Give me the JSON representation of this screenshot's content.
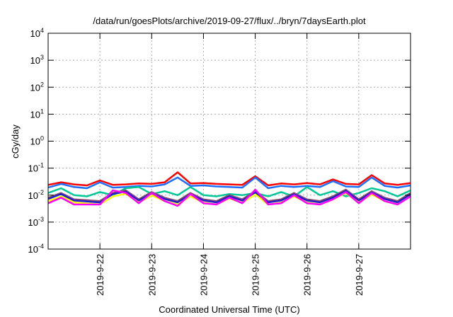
{
  "chart_data": {
    "type": "line",
    "title": "/data/run/goesPlots/archive/2019-09-27/flux/../bryn/7daysEarth.plot",
    "xlabel": "Coordinated Universal Time (UTC)",
    "ylabel": "cGy/day",
    "yscale": "log",
    "ylim": [
      0.0001,
      10000
    ],
    "xlim_hours": [
      0,
      168
    ],
    "x_start": "2019-09-21 00:00",
    "grid": true,
    "legend": "none",
    "yticks": [
      {
        "value": 0.0001,
        "base": "10",
        "exp": "-4"
      },
      {
        "value": 0.001,
        "base": "10",
        "exp": "-3"
      },
      {
        "value": 0.01,
        "base": "10",
        "exp": "-2"
      },
      {
        "value": 0.1,
        "base": "10",
        "exp": "-1"
      },
      {
        "value": 1,
        "base": "10",
        "exp": "0"
      },
      {
        "value": 10,
        "base": "10",
        "exp": "1"
      },
      {
        "value": 100,
        "base": "10",
        "exp": "2"
      },
      {
        "value": 1000,
        "base": "10",
        "exp": "3"
      },
      {
        "value": 10000,
        "base": "10",
        "exp": "4"
      }
    ],
    "xticks": [
      {
        "hour": 24,
        "label": "2019-9-22"
      },
      {
        "hour": 48,
        "label": "2019-9-23"
      },
      {
        "hour": 72,
        "label": "2019-9-24"
      },
      {
        "hour": 96,
        "label": "2019-9-25"
      },
      {
        "hour": 120,
        "label": "2019-9-26"
      },
      {
        "hour": 144,
        "label": "2019-9-27"
      }
    ],
    "x_hours": [
      0,
      6,
      12,
      18,
      24,
      30,
      36,
      42,
      48,
      54,
      60,
      66,
      72,
      78,
      84,
      90,
      96,
      102,
      108,
      114,
      120,
      126,
      132,
      138,
      144,
      150,
      156,
      162,
      168
    ],
    "series": [
      {
        "color": "#ff0000",
        "values": [
          0.024,
          0.03,
          0.025,
          0.023,
          0.035,
          0.024,
          0.025,
          0.027,
          0.026,
          0.03,
          0.07,
          0.027,
          0.028,
          0.026,
          0.025,
          0.024,
          0.05,
          0.023,
          0.027,
          0.025,
          0.028,
          0.025,
          0.038,
          0.026,
          0.025,
          0.055,
          0.027,
          0.024,
          0.028
        ]
      },
      {
        "color": "#1e6fff",
        "values": [
          0.019,
          0.026,
          0.02,
          0.018,
          0.03,
          0.019,
          0.02,
          0.022,
          0.021,
          0.025,
          0.045,
          0.022,
          0.023,
          0.021,
          0.02,
          0.019,
          0.045,
          0.018,
          0.022,
          0.02,
          0.022,
          0.02,
          0.033,
          0.021,
          0.02,
          0.045,
          0.022,
          0.019,
          0.023
        ]
      },
      {
        "color": "#00c896",
        "values": [
          0.012,
          0.018,
          0.01,
          0.009,
          0.013,
          0.01,
          0.018,
          0.02,
          0.011,
          0.014,
          0.01,
          0.02,
          0.01,
          0.009,
          0.011,
          0.01,
          0.012,
          0.009,
          0.013,
          0.009,
          0.02,
          0.01,
          0.014,
          0.009,
          0.012,
          0.018,
          0.014,
          0.009,
          0.015
        ]
      },
      {
        "color": "#8b4f6e",
        "values": [
          0.008,
          0.012,
          0.007,
          0.0065,
          0.006,
          0.012,
          0.015,
          0.007,
          0.013,
          0.008,
          0.006,
          0.012,
          0.007,
          0.006,
          0.01,
          0.007,
          0.014,
          0.006,
          0.007,
          0.012,
          0.007,
          0.006,
          0.009,
          0.016,
          0.007,
          0.014,
          0.008,
          0.006,
          0.012
        ]
      },
      {
        "color": "#2020c8",
        "values": [
          0.0072,
          0.011,
          0.0063,
          0.0058,
          0.0054,
          0.011,
          0.0135,
          0.0063,
          0.0117,
          0.0072,
          0.0054,
          0.0108,
          0.0063,
          0.0054,
          0.009,
          0.0063,
          0.0126,
          0.0054,
          0.0063,
          0.0108,
          0.0063,
          0.0054,
          0.0081,
          0.0144,
          0.0063,
          0.0126,
          0.0072,
          0.0054,
          0.0108
        ]
      },
      {
        "color": "#ffff00",
        "values": [
          0.006,
          0.009,
          0.0053,
          0.0049,
          0.0045,
          0.009,
          0.0113,
          0.0053,
          0.0098,
          0.006,
          0.0045,
          0.009,
          0.0053,
          0.0045,
          0.0075,
          0.0053,
          0.0105,
          0.0045,
          0.0053,
          0.009,
          0.0053,
          0.0045,
          0.0068,
          0.012,
          0.0053,
          0.0105,
          0.006,
          0.0045,
          0.009
        ]
      },
      {
        "color": "#ff00ff",
        "values": [
          0.005,
          0.008,
          0.0045,
          0.0045,
          0.0045,
          0.015,
          0.012,
          0.005,
          0.012,
          0.006,
          0.004,
          0.011,
          0.005,
          0.0045,
          0.008,
          0.005,
          0.016,
          0.0045,
          0.005,
          0.01,
          0.005,
          0.0045,
          0.007,
          0.013,
          0.005,
          0.012,
          0.006,
          0.0045,
          0.009
        ]
      }
    ]
  }
}
